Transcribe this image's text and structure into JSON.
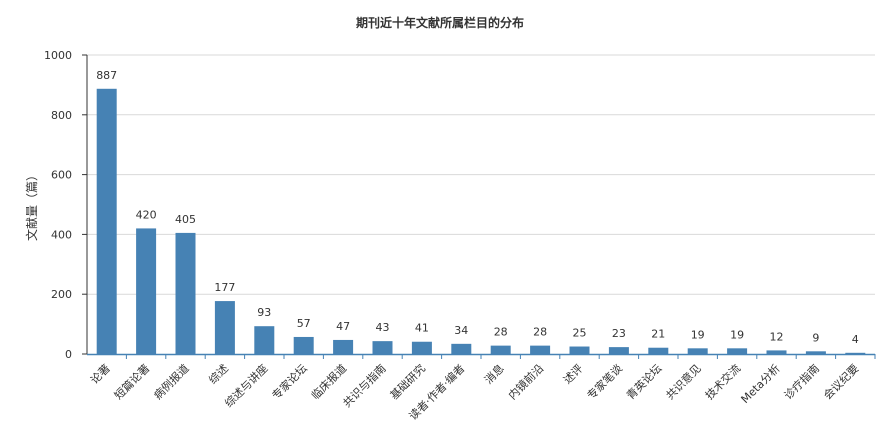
{
  "chart_data": {
    "type": "bar",
    "title": "期刊近十年文献所属栏目的分布",
    "xlabel": "",
    "ylabel": "文献量（篇）",
    "ylim": [
      0,
      1000
    ],
    "yticks": [
      0,
      200,
      400,
      600,
      800,
      1000
    ],
    "grid": true,
    "bar_color": "#4682b4",
    "categories": [
      "论著",
      "短篇论著",
      "病例报道",
      "综述",
      "综述与讲座",
      "专家论坛",
      "临床报道",
      "共识与指南",
      "基础研究",
      "读者·作者·编者",
      "消息",
      "内镜前沿",
      "述评",
      "专家笔谈",
      "青英论坛",
      "共识意见",
      "技术交流",
      "Meta分析",
      "诊疗指南",
      "会议纪要"
    ],
    "values": [
      887,
      420,
      405,
      177,
      93,
      57,
      47,
      43,
      41,
      34,
      28,
      28,
      25,
      23,
      21,
      19,
      19,
      12,
      9,
      4
    ]
  }
}
